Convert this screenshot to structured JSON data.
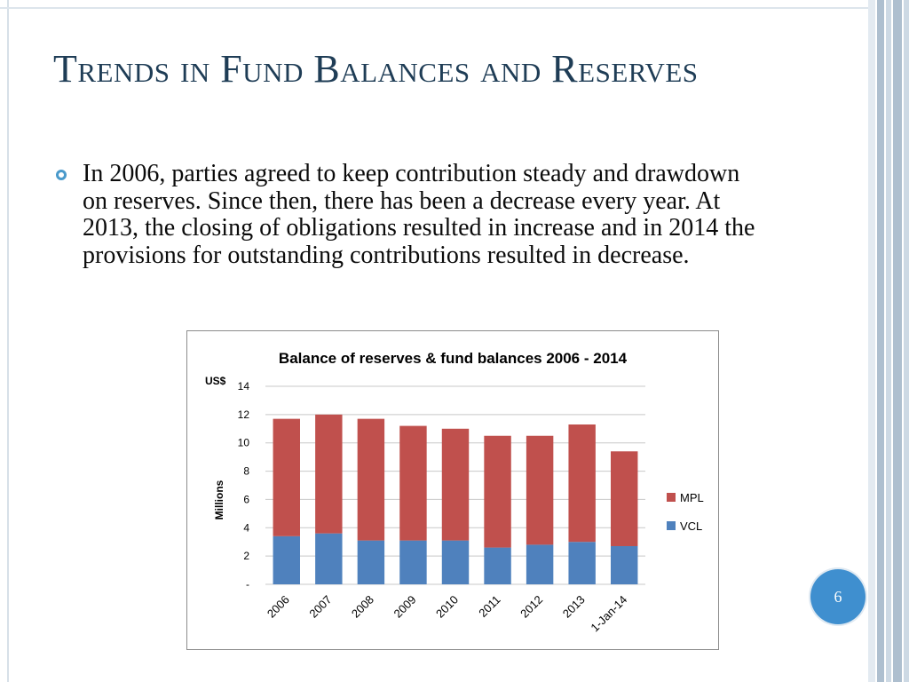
{
  "slide": {
    "title": "Trends in Fund Balances and Reserves",
    "bullet": "In 2006, parties agreed to keep contribution steady and drawdown on reserves. Since then, there has been a decrease every year. At 2013, the closing of obligations resulted in increase and in 2014 the provisions for outstanding contributions resulted in decrease.",
    "page_number": "6"
  },
  "colors": {
    "title": "#1f3d56",
    "bullet": "#4a9acb",
    "page_badge": "#3f8fcf",
    "stripe_dark": "#aebfcf",
    "stripe_light": "#cdd9e4"
  },
  "chart_data": {
    "type": "bar",
    "stacked": true,
    "title": "Balance of reserves & fund balances 2006 - 2014",
    "currency_label": "US$",
    "ylabel": "Millions",
    "xlabel": "",
    "ylim": [
      0,
      14
    ],
    "yticks": [
      0,
      2,
      4,
      6,
      8,
      10,
      12,
      14
    ],
    "ytick_labels": [
      "-",
      "2",
      "4",
      "6",
      "8",
      "10",
      "12",
      "14"
    ],
    "grid": true,
    "legend_position": "right",
    "categories": [
      "2006",
      "2007",
      "2008",
      "2009",
      "2010",
      "2011",
      "2012",
      "2013",
      "1-Jan-14"
    ],
    "series": [
      {
        "name": "VCL",
        "color": "#4f81bd",
        "values": [
          3.4,
          3.6,
          3.1,
          3.1,
          3.1,
          2.6,
          2.8,
          3.0,
          2.7
        ]
      },
      {
        "name": "MPL",
        "color": "#c0504d",
        "values": [
          8.3,
          8.4,
          8.6,
          8.1,
          7.9,
          7.9,
          7.7,
          8.3,
          6.7
        ]
      }
    ],
    "legend_order": [
      "MPL",
      "VCL"
    ]
  }
}
